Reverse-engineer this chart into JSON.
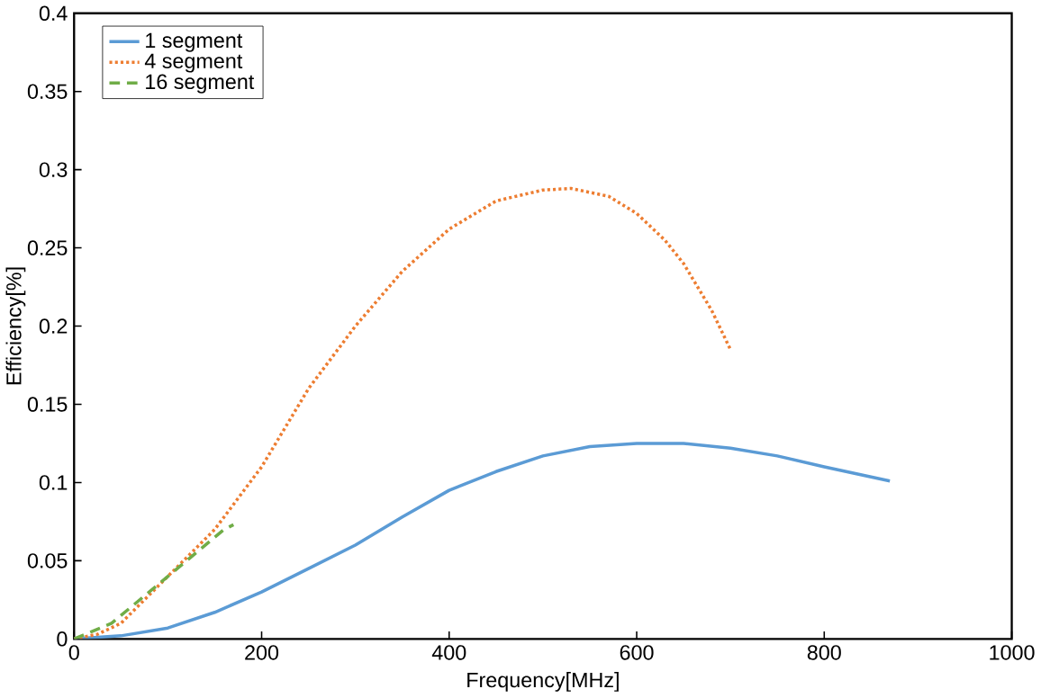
{
  "chart_data": {
    "type": "line",
    "xlabel": "Frequency[MHz]",
    "ylabel": "Efficiency[%]",
    "xlim": [
      0,
      1000
    ],
    "ylim": [
      0,
      0.4
    ],
    "xticks": [
      0,
      200,
      400,
      600,
      800,
      1000
    ],
    "yticks": [
      0,
      0.05,
      0.1,
      0.15,
      0.2,
      0.25,
      0.3,
      0.35,
      0.4
    ],
    "legend": "top left",
    "grid": false,
    "marker": "none",
    "series": [
      {
        "name": "1 segment",
        "color": "#5b9bd5",
        "line_style": "solid",
        "x": [
          0,
          50,
          100,
          150,
          200,
          250,
          300,
          350,
          400,
          450,
          500,
          550,
          600,
          650,
          700,
          750,
          800,
          870
        ],
        "values": [
          0,
          0.002,
          0.007,
          0.017,
          0.03,
          0.045,
          0.06,
          0.078,
          0.095,
          0.107,
          0.117,
          0.123,
          0.125,
          0.125,
          0.122,
          0.117,
          0.11,
          0.101
        ]
      },
      {
        "name": "4 segment",
        "color": "#ed7d31",
        "line_style": "dotted",
        "x": [
          0,
          25,
          50,
          100,
          150,
          200,
          250,
          300,
          350,
          400,
          450,
          500,
          530,
          570,
          600,
          630,
          650,
          680,
          700
        ],
        "values": [
          0,
          0.003,
          0.01,
          0.04,
          0.07,
          0.11,
          0.16,
          0.2,
          0.235,
          0.262,
          0.28,
          0.287,
          0.288,
          0.283,
          0.272,
          0.255,
          0.24,
          0.21,
          0.185
        ]
      },
      {
        "name": "16 segment",
        "color": "#70ad47",
        "line_style": "dashed",
        "x": [
          0,
          40,
          80,
          120,
          160,
          170
        ],
        "values": [
          0,
          0.01,
          0.03,
          0.05,
          0.07,
          0.073
        ]
      }
    ]
  }
}
